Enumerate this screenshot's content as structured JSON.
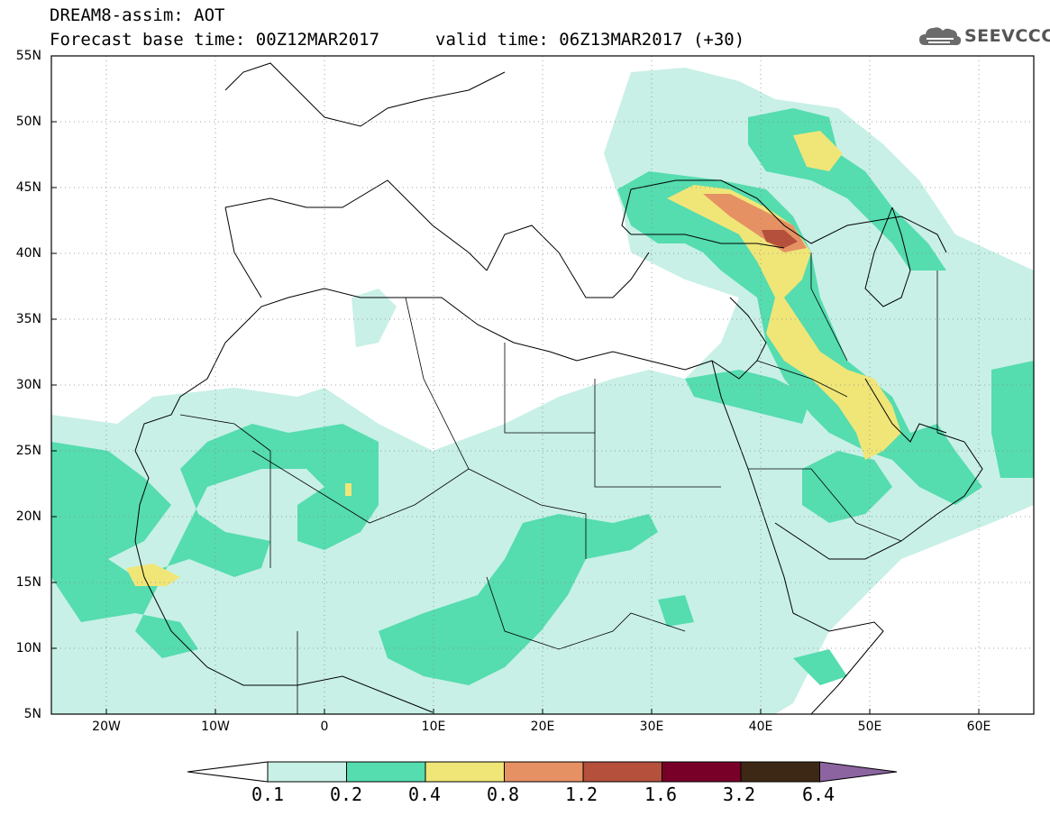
{
  "header": {
    "title_line1": "DREAM8-assim: AOT",
    "title_line2": "Forecast base time: 00Z12MAR2017",
    "valid_text": "valid time: 06Z13MAR2017 (+30)",
    "logo_text": "SEEVCCC",
    "logo_icon": "cloud-icon"
  },
  "map": {
    "lat_labels": [
      "55N",
      "50N",
      "45N",
      "40N",
      "35N",
      "30N",
      "25N",
      "20N",
      "15N",
      "10N",
      "5N"
    ],
    "lon_labels": [
      "20W",
      "10W",
      "0",
      "10E",
      "20E",
      "30E",
      "40E",
      "50E",
      "60E"
    ],
    "lat_range": [
      5,
      55
    ],
    "lon_range": [
      -25,
      65
    ],
    "grid": "dotted"
  },
  "legend": {
    "levels": [
      "0.1",
      "0.2",
      "0.4",
      "0.8",
      "1.2",
      "1.6",
      "3.2",
      "6.4"
    ],
    "colors": [
      "#ffffff",
      "#c8f0e6",
      "#55dcaf",
      "#f0e678",
      "#e69164",
      "#b4503c",
      "#780028",
      "#3c2814",
      "#8c64a0"
    ]
  }
}
